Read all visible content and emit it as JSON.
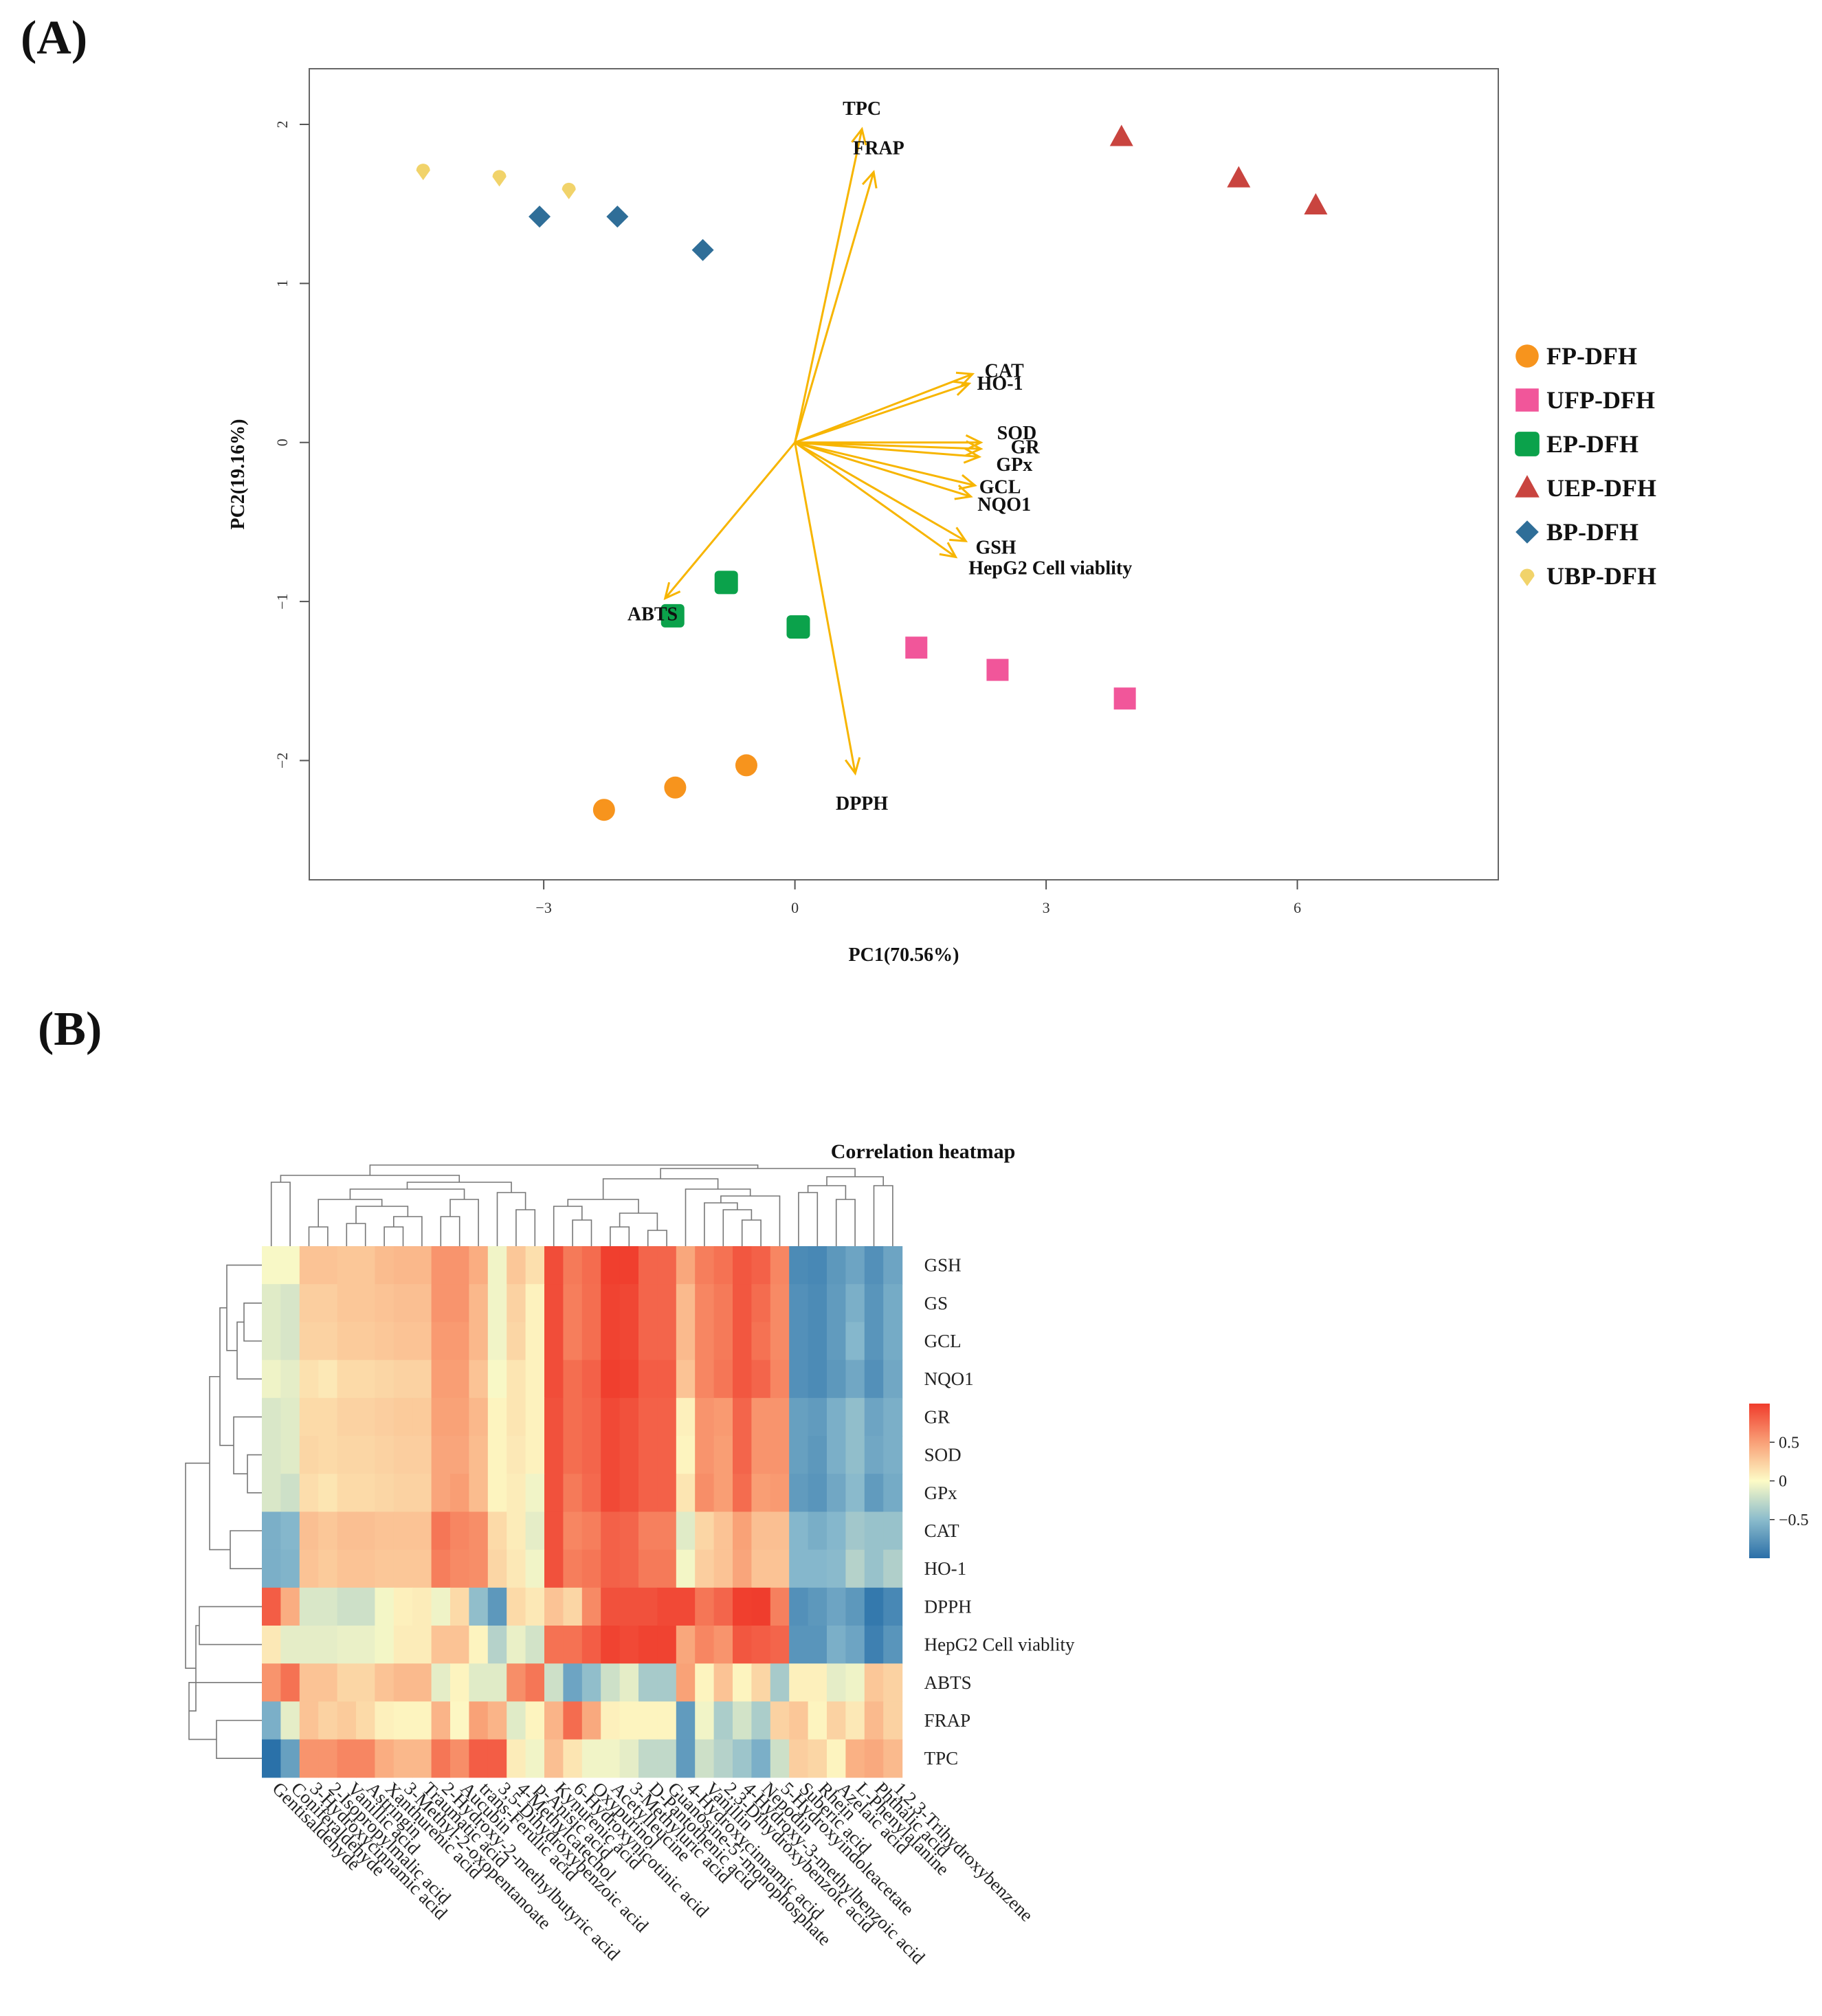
{
  "panels": {
    "a_label": "(A)",
    "b_label": "(B)"
  },
  "chart_data": [
    {
      "type": "scatter",
      "subtype": "pca-biplot",
      "title": "",
      "xlabel": "PC1(70.56%)",
      "ylabel": "PC2(19.16%)",
      "xlim": [
        -5.8,
        8.4
      ],
      "ylim": [
        -2.75,
        2.35
      ],
      "xticks": [
        -3,
        0,
        3,
        6
      ],
      "yticks": [
        -2,
        -1,
        0,
        1,
        2
      ],
      "xtick_labels": [
        "−3",
        "0",
        "3",
        "6"
      ],
      "ytick_labels": [
        "−2",
        "−1",
        "0",
        "1",
        "2"
      ],
      "series": [
        {
          "name": "FP-DFH",
          "color": "#f7941d",
          "marker": "circle",
          "x": [
            -2.28,
            -1.43,
            -0.58
          ],
          "y": [
            -2.31,
            -2.17,
            -2.03
          ]
        },
        {
          "name": "UFP-DFH",
          "color": "#f1569a",
          "marker": "square",
          "x": [
            1.45,
            2.42,
            3.94
          ],
          "y": [
            -1.29,
            -1.43,
            -1.61
          ]
        },
        {
          "name": "EP-DFH",
          "color": "#0ba24b",
          "marker": "rsquare",
          "x": [
            -1.46,
            -0.82,
            0.04
          ],
          "y": [
            -1.09,
            -0.88,
            -1.16
          ]
        },
        {
          "name": "UEP-DFH",
          "color": "#c9443f",
          "marker": "triangle",
          "x": [
            3.9,
            5.3,
            6.22
          ],
          "y": [
            1.92,
            1.66,
            1.49
          ]
        },
        {
          "name": "BP-DFH",
          "color": "#2f6e98",
          "marker": "diamond",
          "x": [
            -3.05,
            -2.12,
            -1.1
          ],
          "y": [
            1.42,
            1.42,
            1.21
          ]
        },
        {
          "name": "UBP-DFH",
          "color": "#f1d36a",
          "marker": "drop",
          "x": [
            -4.44,
            -3.53,
            -2.7
          ],
          "y": [
            1.71,
            1.67,
            1.59
          ]
        }
      ],
      "loadings": [
        {
          "name": "TPC",
          "x": 0.8,
          "y": 1.97,
          "lx": 0.8,
          "ly": 2.1
        },
        {
          "name": "FRAP",
          "x": 0.94,
          "y": 1.7,
          "lx": 1.0,
          "ly": 1.85
        },
        {
          "name": "CAT",
          "x": 2.12,
          "y": 0.43,
          "lx": 2.5,
          "ly": 0.45
        },
        {
          "name": "HO-1",
          "x": 2.08,
          "y": 0.37,
          "lx": 2.45,
          "ly": 0.37
        },
        {
          "name": "SOD",
          "x": 2.22,
          "y": 0.0,
          "lx": 2.65,
          "ly": 0.06
        },
        {
          "name": "GR",
          "x": 2.22,
          "y": -0.04,
          "lx": 2.75,
          "ly": -0.03
        },
        {
          "name": "GPx",
          "x": 2.2,
          "y": -0.09,
          "lx": 2.62,
          "ly": -0.14
        },
        {
          "name": "GCL",
          "x": 2.15,
          "y": -0.27,
          "lx": 2.45,
          "ly": -0.28
        },
        {
          "name": "NQO1",
          "x": 2.1,
          "y": -0.34,
          "lx": 2.5,
          "ly": -0.39
        },
        {
          "name": "GSH",
          "x": 2.04,
          "y": -0.62,
          "lx": 2.4,
          "ly": -0.66
        },
        {
          "name": "HepG2 Cell viablity",
          "x": 1.92,
          "y": -0.72,
          "lx": 3.05,
          "ly": -0.79
        },
        {
          "name": "ABTS",
          "x": -1.55,
          "y": -0.98,
          "lx": -1.7,
          "ly": -1.08
        },
        {
          "name": "DPPH",
          "x": 0.72,
          "y": -2.08,
          "lx": 0.8,
          "ly": -2.27
        }
      ],
      "loading_color": "#f7b500",
      "legend_position": "right"
    },
    {
      "type": "heatmap",
      "title": "Correlation heatmap",
      "rows": [
        "GSH",
        "GS",
        "GCL",
        "NQO1",
        "GR",
        "SOD",
        "GPx",
        "CAT",
        "HO-1",
        "DPPH",
        "HepG2 Cell viablity",
        "ABTS",
        "FRAP",
        "TPC"
      ],
      "columns": [
        "Gentisaldehyde",
        "Coniferaldehyde",
        "3-Hydroxycinnamic acid",
        "2-Isopropylmalic acid",
        "Vanillic acid",
        "Astringin",
        "Xanthurenic acid",
        "3-Methyl-2-oxopentanoate",
        "Traumatic acid",
        "2-Hydroxy-2-methylbutyric acid",
        "Aucubin",
        "trans-Ferulic acid",
        "3,5-Dihydroxybenzoic acid",
        "4-Methylcatechol",
        "p-Anisic acid",
        "Kynurenic acid",
        "6-Hydroxynicotinic acid",
        "Oxypurinol",
        "Acetylleucine",
        "3-Methyluric acid",
        "D-Pantothenic acid",
        "Guanosine-5'-monophosphate",
        "4-Hydroxycinnamic acid",
        "Vanillin",
        "2,3-Dihydroxybenzoic acid",
        "4-Hydroxy-3-methylbenzoic acid",
        "Nepodin",
        "5-Hydroxyindoleacetate",
        "Suberic acid",
        "Rhein",
        "Azelaic acid",
        "L-Phenylalanine",
        "Phthalic acid",
        "1,2,3-Trihydroxybenzene"
      ],
      "values": [
        [
          -0.02,
          -0.02,
          0.3,
          0.3,
          0.28,
          0.28,
          0.34,
          0.36,
          0.36,
          0.55,
          0.55,
          0.42,
          -0.05,
          0.28,
          0.15,
          0.9,
          0.68,
          0.75,
          0.97,
          0.97,
          0.78,
          0.78,
          0.45,
          0.66,
          0.72,
          0.85,
          0.8,
          0.62,
          -0.78,
          -0.8,
          -0.7,
          -0.62,
          -0.75,
          -0.62
        ],
        [
          -0.12,
          -0.16,
          0.24,
          0.24,
          0.28,
          0.28,
          0.3,
          0.32,
          0.32,
          0.55,
          0.55,
          0.36,
          -0.05,
          0.22,
          0.05,
          0.9,
          0.66,
          0.74,
          0.95,
          0.93,
          0.78,
          0.78,
          0.35,
          0.62,
          0.68,
          0.85,
          0.75,
          0.6,
          -0.75,
          -0.78,
          -0.68,
          -0.55,
          -0.72,
          -0.58
        ],
        [
          -0.12,
          -0.16,
          0.22,
          0.22,
          0.26,
          0.26,
          0.28,
          0.3,
          0.3,
          0.52,
          0.52,
          0.36,
          -0.05,
          0.2,
          0.05,
          0.9,
          0.66,
          0.74,
          0.95,
          0.93,
          0.78,
          0.78,
          0.35,
          0.62,
          0.68,
          0.85,
          0.72,
          0.6,
          -0.75,
          -0.78,
          -0.68,
          -0.5,
          -0.72,
          -0.58
        ],
        [
          -0.06,
          -0.1,
          0.14,
          0.1,
          0.18,
          0.18,
          0.2,
          0.22,
          0.22,
          0.5,
          0.5,
          0.3,
          -0.02,
          0.12,
          0.05,
          0.9,
          0.74,
          0.8,
          0.97,
          0.95,
          0.82,
          0.82,
          0.3,
          0.62,
          0.7,
          0.85,
          0.78,
          0.62,
          -0.75,
          -0.78,
          -0.7,
          -0.6,
          -0.75,
          -0.6
        ],
        [
          -0.15,
          -0.12,
          0.18,
          0.18,
          0.22,
          0.22,
          0.24,
          0.26,
          0.26,
          0.48,
          0.48,
          0.36,
          0.04,
          0.12,
          0.05,
          0.88,
          0.74,
          0.78,
          0.92,
          0.88,
          0.8,
          0.8,
          0.06,
          0.55,
          0.52,
          0.78,
          0.55,
          0.55,
          -0.65,
          -0.68,
          -0.55,
          -0.45,
          -0.62,
          -0.55
        ],
        [
          -0.15,
          -0.12,
          0.2,
          0.18,
          0.2,
          0.2,
          0.22,
          0.24,
          0.24,
          0.46,
          0.46,
          0.34,
          0.04,
          0.1,
          0.05,
          0.88,
          0.74,
          0.78,
          0.92,
          0.88,
          0.8,
          0.8,
          0.04,
          0.55,
          0.5,
          0.78,
          0.55,
          0.55,
          -0.65,
          -0.7,
          -0.55,
          -0.45,
          -0.6,
          -0.55
        ],
        [
          -0.15,
          -0.2,
          0.16,
          0.12,
          0.18,
          0.18,
          0.2,
          0.22,
          0.22,
          0.46,
          0.5,
          0.34,
          0.04,
          0.08,
          -0.05,
          0.88,
          0.68,
          0.76,
          0.92,
          0.88,
          0.8,
          0.8,
          0.12,
          0.58,
          0.5,
          0.75,
          0.5,
          0.52,
          -0.68,
          -0.72,
          -0.6,
          -0.48,
          -0.68,
          -0.58
        ],
        [
          -0.55,
          -0.5,
          0.32,
          0.28,
          0.32,
          0.32,
          0.3,
          0.3,
          0.3,
          0.7,
          0.62,
          0.58,
          0.18,
          0.08,
          -0.1,
          0.88,
          0.62,
          0.66,
          0.8,
          0.78,
          0.65,
          0.65,
          -0.12,
          0.2,
          0.3,
          0.48,
          0.32,
          0.32,
          -0.5,
          -0.56,
          -0.5,
          -0.38,
          -0.42,
          -0.42
        ],
        [
          -0.55,
          -0.52,
          0.3,
          0.26,
          0.3,
          0.3,
          0.28,
          0.28,
          0.28,
          0.66,
          0.6,
          0.58,
          0.2,
          0.1,
          -0.05,
          0.88,
          0.66,
          0.7,
          0.8,
          0.78,
          0.68,
          0.68,
          -0.04,
          0.24,
          0.3,
          0.46,
          0.3,
          0.3,
          -0.5,
          -0.5,
          -0.48,
          -0.3,
          -0.42,
          -0.32
        ],
        [
          0.82,
          0.42,
          -0.15,
          -0.15,
          -0.2,
          -0.2,
          -0.04,
          0.06,
          0.08,
          -0.06,
          0.18,
          -0.45,
          -0.7,
          0.18,
          0.1,
          0.3,
          0.2,
          0.6,
          0.88,
          0.88,
          0.88,
          0.92,
          0.92,
          0.7,
          0.78,
          0.97,
          0.98,
          0.65,
          -0.75,
          -0.7,
          -0.62,
          -0.7,
          -0.9,
          -0.8
        ],
        [
          0.1,
          -0.1,
          -0.1,
          -0.1,
          -0.08,
          -0.08,
          -0.04,
          0.08,
          0.08,
          0.3,
          0.3,
          0.04,
          -0.3,
          -0.08,
          -0.18,
          0.72,
          0.72,
          0.82,
          0.95,
          0.92,
          0.95,
          0.95,
          0.45,
          0.62,
          0.55,
          0.85,
          0.82,
          0.78,
          -0.72,
          -0.72,
          -0.55,
          -0.62,
          -0.85,
          -0.72
        ],
        [
          0.55,
          0.72,
          0.3,
          0.3,
          0.2,
          0.2,
          0.3,
          0.35,
          0.35,
          -0.1,
          0.04,
          -0.12,
          -0.12,
          0.58,
          0.7,
          -0.2,
          -0.62,
          -0.45,
          -0.2,
          -0.1,
          -0.36,
          -0.36,
          0.48,
          0.04,
          0.3,
          0.04,
          0.2,
          -0.36,
          0.06,
          0.06,
          -0.1,
          -0.06,
          0.28,
          0.22
        ],
        [
          -0.55,
          -0.1,
          0.3,
          0.22,
          0.26,
          0.18,
          0.06,
          0.04,
          0.04,
          0.38,
          0.02,
          0.48,
          0.38,
          -0.12,
          0.04,
          0.38,
          0.75,
          0.44,
          0.06,
          0.04,
          0.04,
          0.04,
          -0.68,
          -0.05,
          -0.34,
          -0.18,
          -0.34,
          0.22,
          0.28,
          0.04,
          0.22,
          0.1,
          0.35,
          0.22
        ],
        [
          -0.95,
          -0.65,
          0.55,
          0.55,
          0.62,
          0.62,
          0.42,
          0.36,
          0.36,
          0.7,
          0.58,
          0.82,
          0.82,
          0.08,
          -0.05,
          0.32,
          0.12,
          -0.05,
          -0.05,
          -0.1,
          -0.25,
          -0.25,
          -0.68,
          -0.2,
          -0.3,
          -0.4,
          -0.55,
          -0.2,
          0.24,
          0.2,
          0.04,
          0.4,
          0.44,
          0.35
        ]
      ],
      "colorbar": {
        "ticks": [
          0.5,
          0,
          -0.5
        ],
        "tick_labels": [
          "0.5",
          "0",
          "−0.5"
        ],
        "range": [
          -1,
          1
        ],
        "colors": [
          "#2b6fa8",
          "#fdfbc6",
          "#f03c2c"
        ]
      },
      "clustering": "rows and columns (hierarchical dendrograms)"
    }
  ]
}
